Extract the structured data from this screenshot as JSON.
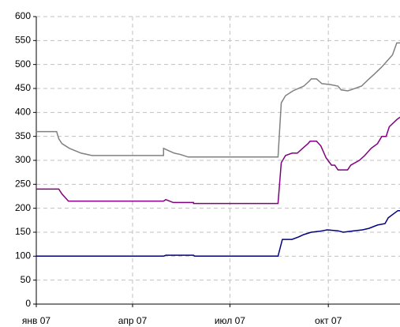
{
  "chart_data": {
    "type": "line",
    "xlim": [
      0,
      340
    ],
    "xticks": [
      {
        "value": 0,
        "label": "янв 07"
      },
      {
        "value": 90,
        "label": "апр 07"
      },
      {
        "value": 181,
        "label": "июл 07"
      },
      {
        "value": 273,
        "label": "окт 07"
      }
    ],
    "ylim": [
      0,
      600
    ],
    "yticks": [
      0,
      50,
      100,
      150,
      200,
      250,
      300,
      350,
      400,
      450,
      500,
      550,
      600
    ],
    "grid": true,
    "series": [
      {
        "color": "#808080",
        "x": [
          0,
          19,
          21,
          24,
          31,
          42,
          52,
          119,
          119,
          124,
          129,
          135,
          142,
          226,
          229,
          233,
          240,
          250,
          255,
          257,
          262,
          267,
          275,
          282,
          285,
          291,
          294,
          304,
          311,
          316,
          323,
          327,
          333,
          337,
          340
        ],
        "values": [
          360,
          360,
          345,
          335,
          325,
          315,
          310,
          310,
          325,
          320,
          315,
          312,
          307,
          307,
          420,
          435,
          445,
          455,
          465,
          470,
          470,
          460,
          458,
          455,
          447,
          445,
          447,
          455,
          470,
          480,
          495,
          505,
          520,
          545,
          545
        ]
      },
      {
        "color": "#800080",
        "x": [
          0,
          21,
          24,
          30,
          119,
          121,
          128,
          147,
          147,
          226,
          229,
          233,
          239,
          244,
          249,
          254,
          256,
          262,
          266,
          271,
          276,
          279,
          282,
          291,
          294,
          302,
          307,
          313,
          319,
          323,
          327,
          330,
          337,
          340
        ],
        "values": [
          240,
          240,
          230,
          215,
          215,
          218,
          212,
          212,
          210,
          210,
          295,
          310,
          315,
          315,
          325,
          335,
          340,
          340,
          330,
          305,
          290,
          290,
          280,
          280,
          290,
          300,
          310,
          325,
          335,
          350,
          350,
          370,
          385,
          390
        ]
      },
      {
        "color": "#000080",
        "x": [
          0,
          119,
          121,
          147,
          148,
          226,
          230,
          239,
          245,
          250,
          257,
          265,
          272,
          282,
          287,
          294,
          305,
          311,
          319,
          326,
          329,
          335,
          338,
          340
        ],
        "values": [
          100,
          100,
          102,
          102,
          100,
          100,
          135,
          135,
          140,
          145,
          150,
          152,
          155,
          153,
          150,
          152,
          155,
          158,
          165,
          168,
          180,
          190,
          195,
          195
        ]
      }
    ]
  }
}
